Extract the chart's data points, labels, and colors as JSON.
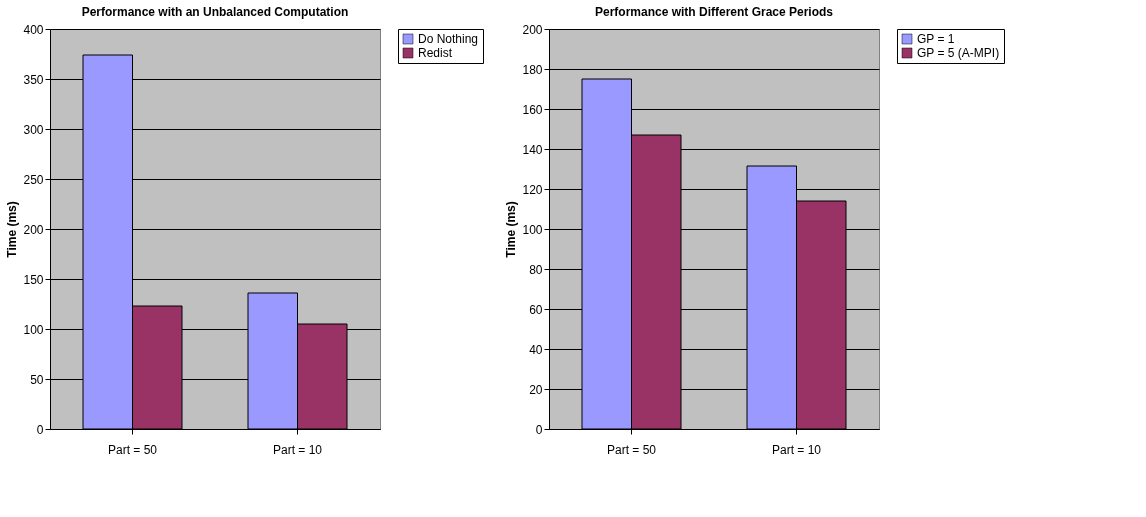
{
  "chart_data": [
    {
      "type": "bar",
      "title": "Performance with an Unbalanced Computation",
      "ylabel": "Time (ms)",
      "categories": [
        "Part = 50",
        "Part = 10"
      ],
      "ylim": [
        0,
        400
      ],
      "yticks": [
        0,
        50,
        100,
        150,
        200,
        250,
        300,
        350,
        400
      ],
      "grid": "y",
      "legend": "right",
      "series": [
        {
          "name": "Do Nothing",
          "color": "#9999ff",
          "values": [
            374,
            136
          ]
        },
        {
          "name": "Redist",
          "color": "#993366",
          "values": [
            123,
            105
          ]
        }
      ]
    },
    {
      "type": "bar",
      "title": "Performance with Different Grace Periods",
      "ylabel": "Time (ms)",
      "categories": [
        "Part = 50",
        "Part = 10"
      ],
      "ylim": [
        0,
        200
      ],
      "yticks": [
        0,
        20,
        40,
        60,
        80,
        100,
        120,
        140,
        160,
        180,
        200
      ],
      "grid": "y",
      "legend": "right",
      "series": [
        {
          "name": "GP = 1",
          "color": "#9999ff",
          "values": [
            175,
            131.5
          ]
        },
        {
          "name": "GP = 5 (A-MPI)",
          "color": "#993366",
          "values": [
            147,
            114
          ]
        }
      ]
    }
  ]
}
